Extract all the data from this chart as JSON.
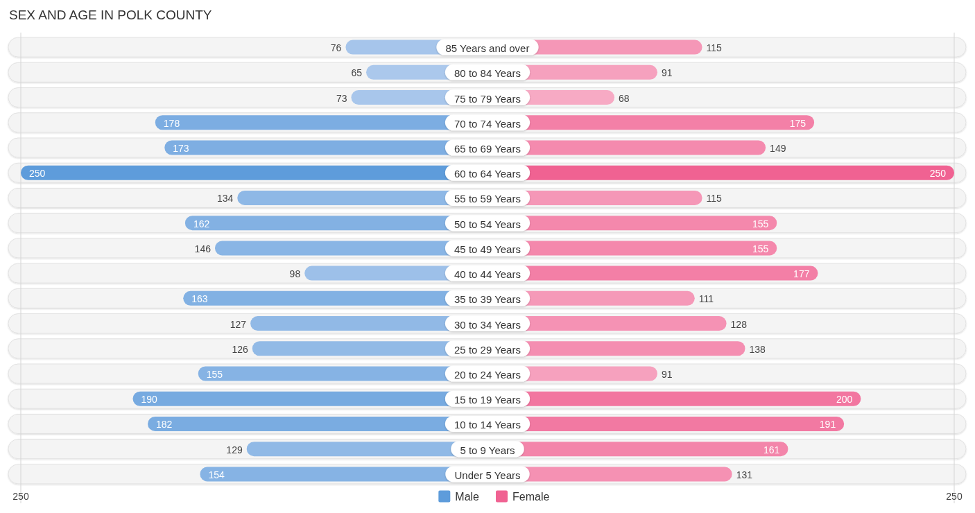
{
  "chart_data": [
    {
      "type": "bar",
      "orientation": "horizontal",
      "title": "SEX AND AGE IN POLK COUNTY",
      "categories": [
        "85 Years and over",
        "80 to 84 Years",
        "75 to 79 Years",
        "70 to 74 Years",
        "65 to 69 Years",
        "60 to 64 Years",
        "55 to 59 Years",
        "50 to 54 Years",
        "45 to 49 Years",
        "40 to 44 Years",
        "35 to 39 Years",
        "30 to 34 Years",
        "25 to 29 Years",
        "20 to 24 Years",
        "15 to 19 Years",
        "10 to 14 Years",
        "5 to 9 Years",
        "Under 5 Years"
      ],
      "series": [
        {
          "name": "Male",
          "color": "#5e9cdb",
          "colors": [
            "#a6c5eb",
            "#abc8ec",
            "#a8c6eb",
            "#7cade2",
            "#7eaee2",
            "#5e9cdb",
            "#8eb8e6",
            "#83b1e3",
            "#89b5e5",
            "#9dc0e9",
            "#82b1e3",
            "#91b9e6",
            "#92bae6",
            "#86b3e4",
            "#77aae0",
            "#7aace1",
            "#90b9e6",
            "#86b3e4"
          ],
          "values": [
            76,
            65,
            73,
            178,
            173,
            250,
            134,
            162,
            146,
            98,
            163,
            127,
            126,
            155,
            190,
            182,
            129,
            154
          ]
        }
      ],
      "data_labels": true,
      "xlim": [
        250,
        0
      ],
      "xticks": [
        250
      ],
      "legend": "bottom right"
    },
    {
      "type": "bar",
      "orientation": "horizontal",
      "categories": [
        "85 Years and over",
        "80 to 84 Years",
        "75 to 79 Years",
        "70 to 74 Years",
        "65 to 69 Years",
        "60 to 64 Years",
        "55 to 59 Years",
        "50 to 54 Years",
        "45 to 49 Years",
        "40 to 44 Years",
        "35 to 39 Years",
        "30 to 34 Years",
        "25 to 29 Years",
        "20 to 24 Years",
        "15 to 19 Years",
        "10 to 14 Years",
        "5 to 9 Years",
        "Under 5 Years"
      ],
      "series": [
        {
          "name": "Female",
          "color": "#f06292",
          "colors": [
            "#f597b7",
            "#f6a1be",
            "#f7aac4",
            "#f380a7",
            "#f48aae",
            "#f06292",
            "#f597b7",
            "#f488ac",
            "#f488ac",
            "#f37fa6",
            "#f599b8",
            "#f592b4",
            "#f48eb1",
            "#f6a1be",
            "#f276a0",
            "#f279a2",
            "#f385aa",
            "#f591b3"
          ],
          "values": [
            115,
            91,
            68,
            175,
            149,
            250,
            115,
            155,
            155,
            177,
            111,
            128,
            138,
            91,
            200,
            191,
            161,
            131
          ]
        }
      ],
      "data_labels": true,
      "xlim": [
        0,
        250
      ],
      "xticks": [
        250
      ],
      "legend": "bottom left",
      "tick_labels": "x"
    }
  ]
}
